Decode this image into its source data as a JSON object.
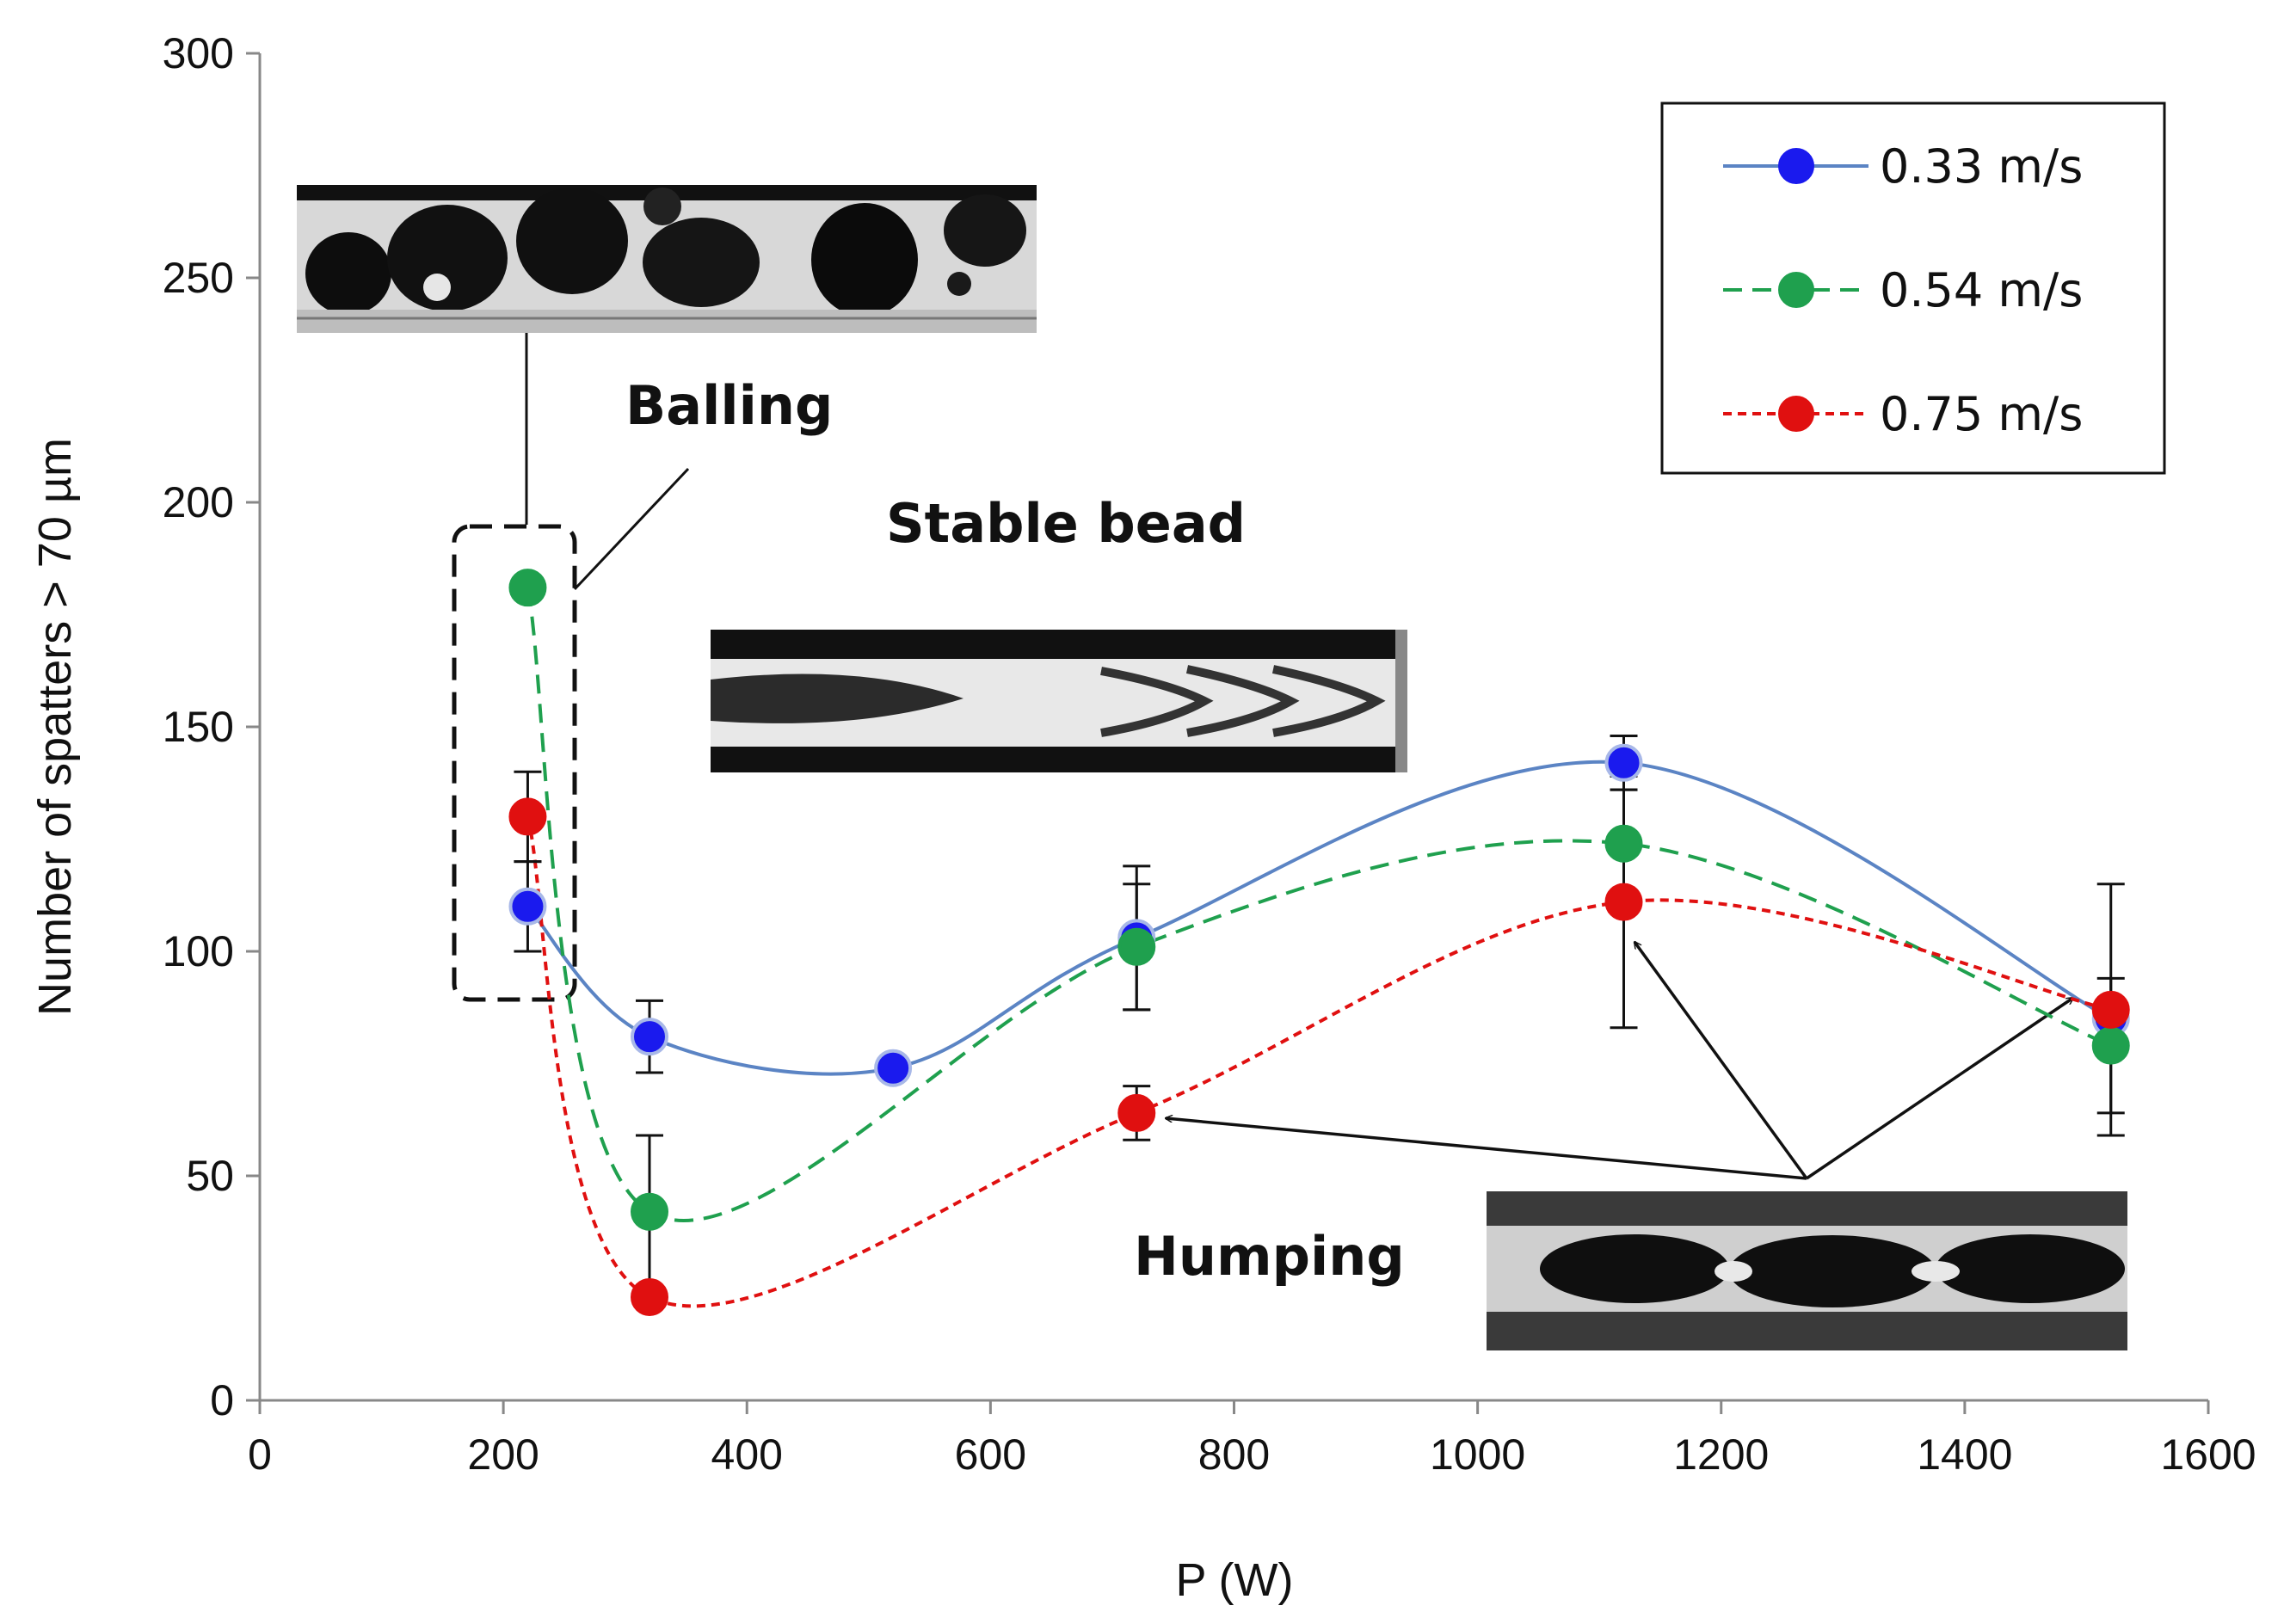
{
  "chart_data": {
    "type": "line",
    "title": "",
    "xlabel": "P (W)",
    "ylabel": "Number of spatters > 70 µm",
    "xlim": [
      0,
      1600
    ],
    "ylim": [
      0,
      300
    ],
    "xticks": [
      0,
      200,
      400,
      600,
      800,
      1000,
      1200,
      1400,
      1600
    ],
    "yticks": [
      0,
      50,
      100,
      150,
      200,
      250,
      300
    ],
    "grid": false,
    "legend_position": "top-right",
    "series": [
      {
        "name": "0.33 m/s",
        "color": "#1a1aee",
        "line_color": "#5b84c4",
        "line_style": "solid",
        "x": [
          220,
          320,
          520,
          720,
          1120,
          1520
        ],
        "y": [
          110,
          81,
          74,
          103,
          142,
          85
        ],
        "error": [
          10,
          8,
          null,
          16,
          6,
          null
        ]
      },
      {
        "name": "0.54 m/s",
        "color": "#1fa04e",
        "line_color": "#1fa04e",
        "line_style": "dashed",
        "x": [
          220,
          320,
          720,
          1120,
          1520
        ],
        "y": [
          181,
          42,
          101,
          124,
          79
        ],
        "error": [
          null,
          17,
          14,
          12,
          15
        ]
      },
      {
        "name": "0.75 m/s",
        "color": "#e01010",
        "line_color": "#e01010",
        "line_style": "dotted",
        "x": [
          220,
          320,
          720,
          1120,
          1520
        ],
        "y": [
          130,
          23,
          64,
          111,
          87
        ],
        "error": [
          10,
          null,
          6,
          28,
          28
        ]
      }
    ],
    "annotations": [
      "Balling",
      "Stable bead",
      "Humping"
    ]
  }
}
